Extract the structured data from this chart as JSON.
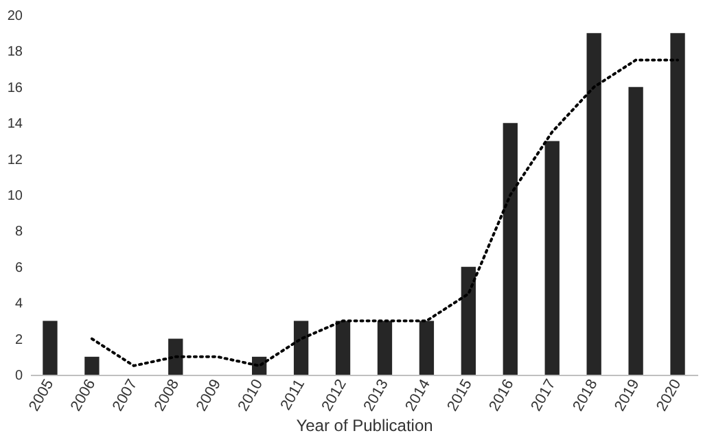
{
  "chart_data": {
    "type": "bar",
    "xlabel": "Year of Publication",
    "categories": [
      "2005",
      "2006",
      "2007",
      "2008",
      "2009",
      "2010",
      "2011",
      "2012",
      "2013",
      "2014",
      "2015",
      "2016",
      "2017",
      "2018",
      "2019",
      "2020"
    ],
    "series": [
      {
        "color": "#262626",
        "values": [
          3,
          1,
          0,
          2,
          0,
          1,
          3,
          3,
          3,
          3,
          6,
          14,
          13,
          19,
          16,
          19
        ]
      },
      {
        "type": "line",
        "color": "#000000",
        "line_style": "dotted",
        "marker": "none",
        "values": [
          null,
          2,
          0.5,
          1,
          1,
          0.5,
          2,
          3,
          3,
          3,
          4.5,
          10,
          13.5,
          16,
          17.5,
          17.5
        ]
      }
    ],
    "ylim": [
      0,
      20
    ],
    "yticks": [
      0,
      2,
      4,
      6,
      8,
      10,
      12,
      14,
      16,
      18,
      20
    ],
    "grid": false
  }
}
